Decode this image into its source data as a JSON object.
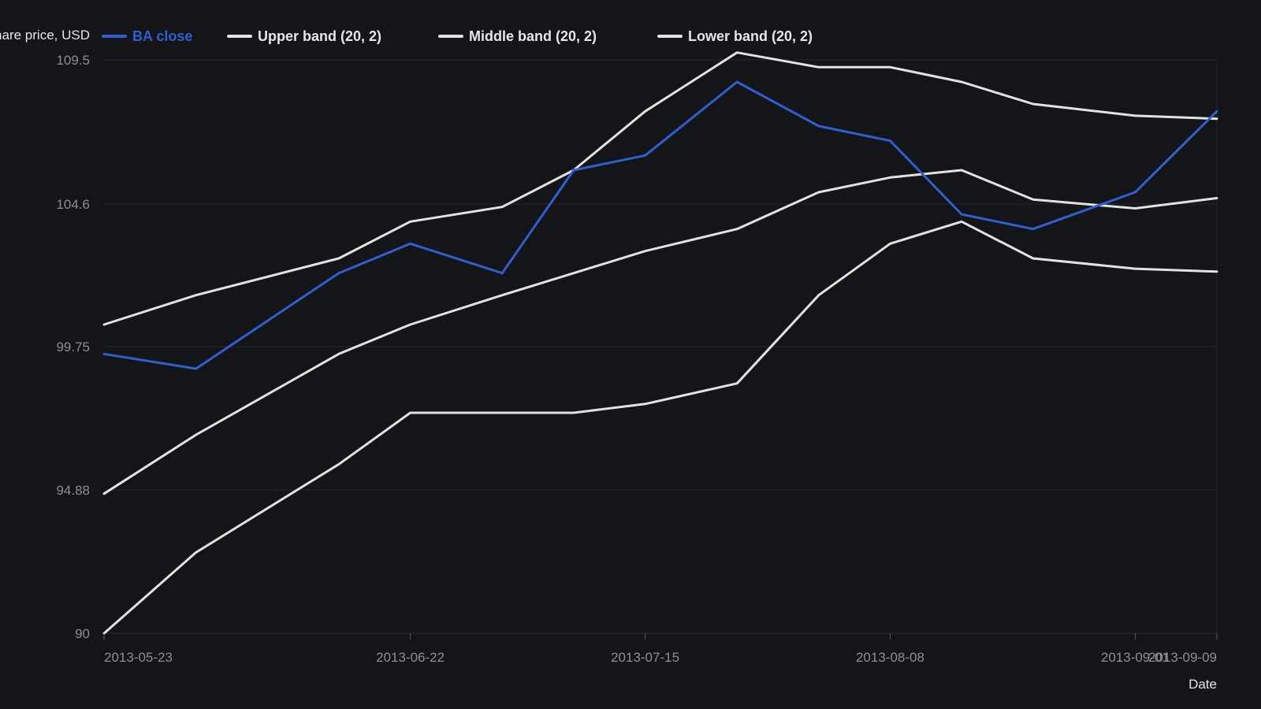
{
  "chart_data": {
    "type": "line",
    "ylabel": "Share price, USD",
    "xlabel": "Date",
    "x": [
      "2013-05-23",
      "2013-06-01",
      "2013-06-15",
      "2013-06-22",
      "2013-07-01",
      "2013-07-08",
      "2013-07-15",
      "2013-07-24",
      "2013-08-01",
      "2013-08-08",
      "2013-08-15",
      "2013-08-22",
      "2013-09-01",
      "2013-09-09"
    ],
    "series": [
      {
        "name": "BA close",
        "color": "#2f5fd0",
        "values": [
          99.5,
          99.0,
          102.25,
          103.25,
          102.25,
          105.75,
          106.25,
          108.75,
          107.25,
          106.75,
          104.25,
          103.75,
          105.0,
          107.75
        ]
      },
      {
        "name": "Upper band (20, 2)",
        "color": "#e2e2e2",
        "values": [
          100.5,
          101.5,
          102.75,
          104.0,
          104.5,
          105.75,
          107.75,
          109.75,
          109.25,
          109.25,
          108.75,
          108.0,
          107.6,
          107.5
        ]
      },
      {
        "name": "Middle band (20, 2)",
        "color": "#e2e2e2",
        "values": [
          94.75,
          96.75,
          99.5,
          100.5,
          101.5,
          102.25,
          103.0,
          103.75,
          105.0,
          105.5,
          105.75,
          104.75,
          104.45,
          104.8
        ]
      },
      {
        "name": "Lower band (20, 2)",
        "color": "#e2e2e2",
        "values": [
          90.0,
          92.75,
          95.75,
          97.5,
          97.5,
          97.5,
          97.8,
          98.5,
          101.5,
          103.25,
          104.0,
          102.75,
          102.4,
          102.3
        ]
      }
    ],
    "yticks": [
      "109.5",
      "104.6",
      "99.75",
      "94.88",
      "90"
    ],
    "xticks": [
      "2013-05-23",
      "2013-06-22",
      "2013-07-15",
      "2013-08-08",
      "2013-09-01",
      "2013-09-09"
    ],
    "ylim": [
      90,
      109.5
    ],
    "xlim": [
      "2013-05-23",
      "2013-09-09"
    ],
    "grid": "horizontal",
    "legend_position": "top-left"
  }
}
